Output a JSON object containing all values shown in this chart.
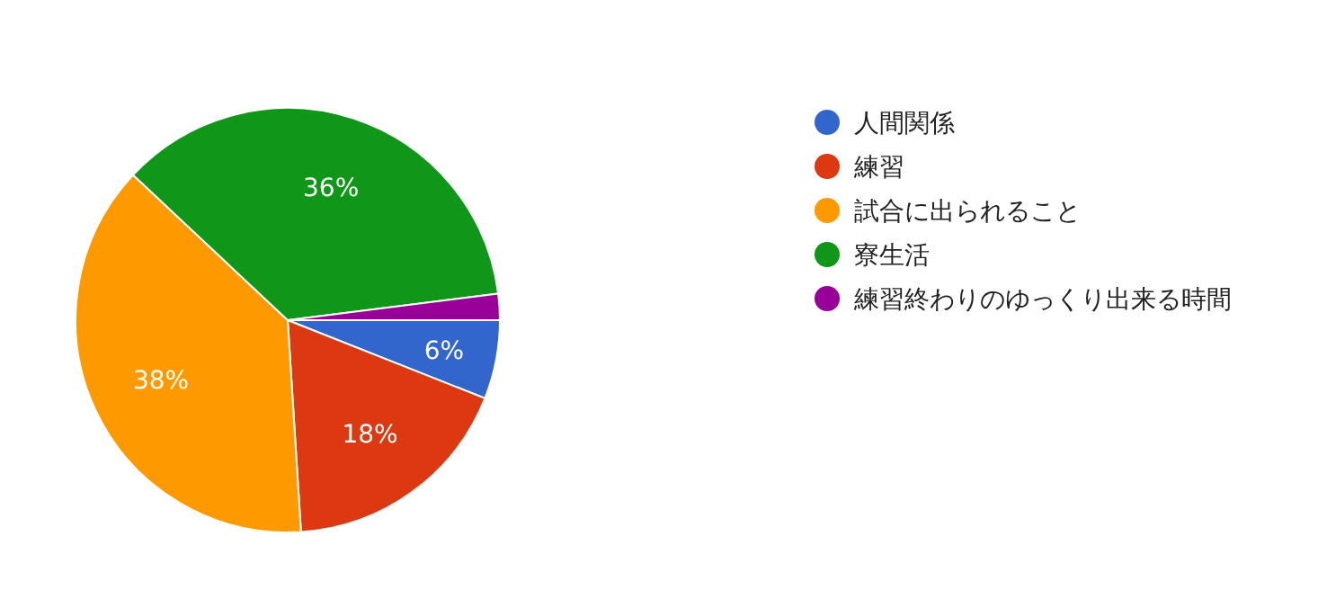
{
  "chart_data": {
    "type": "pie",
    "categories": [
      "人間関係",
      "練習",
      "試合に出られること",
      "寮生活",
      "練習終わりのゆっくり出来る時間"
    ],
    "values": [
      6,
      18,
      38,
      36,
      2
    ],
    "colors": [
      "#3366cc",
      "#dc3912",
      "#ff9900",
      "#109618",
      "#990099"
    ],
    "value_labels": [
      "6%",
      "18%",
      "38%",
      "36%",
      null
    ],
    "legend": "right"
  }
}
